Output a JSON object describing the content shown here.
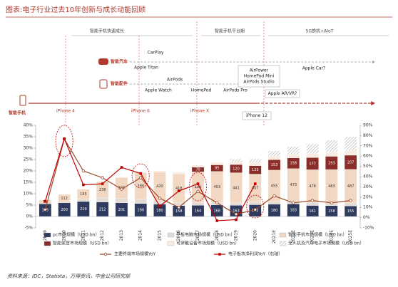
{
  "title": "图表:电子行业过去10年创新与成长动能回顾",
  "source": "资料来源：IDC，Statista，万得资讯，中金公司研究部",
  "timeline": {
    "phases": [
      "智能手机快速成长",
      "智能手机平台期",
      "5G换机+AIoT"
    ],
    "rows": [
      {
        "label": "智能汽车",
        "events": [
          "CarPlay",
          "Apple Titan",
          "Apple Car?"
        ]
      },
      {
        "label": "智能配件",
        "events": [
          "Apple Watch",
          "AirPods",
          "HomePod",
          "AirPods Pro",
          "Apple AR/VR?"
        ]
      },
      {
        "label": "智能手机",
        "events": [
          "iPhone 4",
          "iPhone 6",
          "iPhone X",
          "iPhone 12"
        ]
      }
    ],
    "launches": [
      "AirPower",
      "HomePod Mini",
      "AirPods Studio"
    ]
  },
  "chart_data": {
    "type": "bar_line",
    "categories": [
      "2009",
      "2010",
      "2011",
      "2012",
      "2013",
      "2014",
      "2015",
      "2016",
      "2017",
      "2018",
      "2019",
      "2020",
      "2021E",
      "2022E",
      "2023E",
      "2024E",
      "2025E"
    ],
    "ylim": [
      -5,
      40
    ],
    "yticks": [
      {
        "value": -5,
        "label": "-5%"
      },
      {
        "value": 0,
        "label": "0%"
      },
      {
        "value": 5,
        "label": "5%"
      },
      {
        "value": 10,
        "label": "10%"
      },
      {
        "value": 15,
        "label": "15%"
      },
      {
        "value": 20,
        "label": "20%"
      },
      {
        "value": 25,
        "label": "25%"
      },
      {
        "value": 30,
        "label": "30%"
      },
      {
        "value": 35,
        "label": "35%"
      },
      {
        "value": 40,
        "label": "40%"
      }
    ],
    "y2lim": [
      -10,
      90
    ],
    "y2ticks": [
      {
        "value": -10,
        "label": "-10%"
      },
      {
        "value": 0,
        "label": "0%"
      },
      {
        "value": 10,
        "label": "10%"
      },
      {
        "value": 20,
        "label": "20%"
      },
      {
        "value": 30,
        "label": "30%"
      },
      {
        "value": 40,
        "label": "40%"
      },
      {
        "value": 50,
        "label": "50%"
      },
      {
        "value": 60,
        "label": "60%"
      },
      {
        "value": 70,
        "label": "70%"
      },
      {
        "value": 80,
        "label": "80%"
      },
      {
        "value": 90,
        "label": "90%"
      }
    ],
    "bar_series": [
      {
        "name": "pc市场规模（USD bn）",
        "color": "#2f3b5e",
        "show_labels": true,
        "values": [
          185,
          200,
          219,
          212,
          201,
          190,
          180,
          158,
          164,
          168,
          163,
          172,
          180,
          183,
          161,
          158,
          155
        ]
      },
      {
        "name": "平板电脑市场规模（USD bn）",
        "color": "#e4dcd4",
        "show_labels": false,
        "values": [
          null,
          10,
          35,
          60,
          65,
          60,
          50,
          45,
          40,
          38,
          35,
          40,
          42,
          43,
          44,
          45,
          46
        ]
      },
      {
        "name": "智能手机市场规模（USD bn）",
        "color": "#f2d8c2",
        "show_labels": true,
        "values": [
          55,
          112,
          145,
          238,
          305,
          390,
          420,
          418,
          448,
          453,
          441,
          407,
          455,
          473,
          478,
          483,
          487
        ]
      },
      {
        "name": "智能家居市场规模（USD bn）",
        "color": "#8b2e2a",
        "show_labels": true,
        "values": [
          null,
          null,
          null,
          null,
          null,
          null,
          null,
          null,
          70,
          95,
          120,
          123,
          153,
          158,
          177,
          193,
          207
        ]
      },
      {
        "name": "可穿戴设备市场规模（USD bn）",
        "color": "#f8ece2",
        "show_labels": false,
        "values": [
          null,
          null,
          null,
          null,
          null,
          15,
          20,
          25,
          30,
          35,
          40,
          45,
          50,
          55,
          60,
          65,
          70
        ]
      },
      {
        "name": "无人机及汽车电子市场规模（USD bn）",
        "color": "#b5b5b5",
        "hatch": true,
        "show_labels": false,
        "values": [
          null,
          null,
          null,
          null,
          null,
          null,
          null,
          null,
          null,
          null,
          40,
          55,
          80,
          110,
          140,
          170,
          200
        ]
      }
    ],
    "line_series": [
      {
        "name": "主要终端市场规模YoY",
        "color": "#9a4a2c",
        "marker": "circle",
        "axis": "y",
        "values": [
          3,
          34,
          20,
          17,
          12,
          17,
          8,
          4,
          11,
          6,
          1,
          3,
          9,
          6,
          7,
          6,
          7
        ]
      },
      {
        "name": "电子板块净利润YoY（右轴）",
        "color": "#c00000",
        "marker": "square",
        "axis": "y2",
        "values": [
          16,
          77,
          32,
          33,
          49,
          43,
          11,
          26,
          33,
          -3,
          -2,
          33,
          null,
          null,
          null,
          null,
          null
        ]
      }
    ]
  }
}
